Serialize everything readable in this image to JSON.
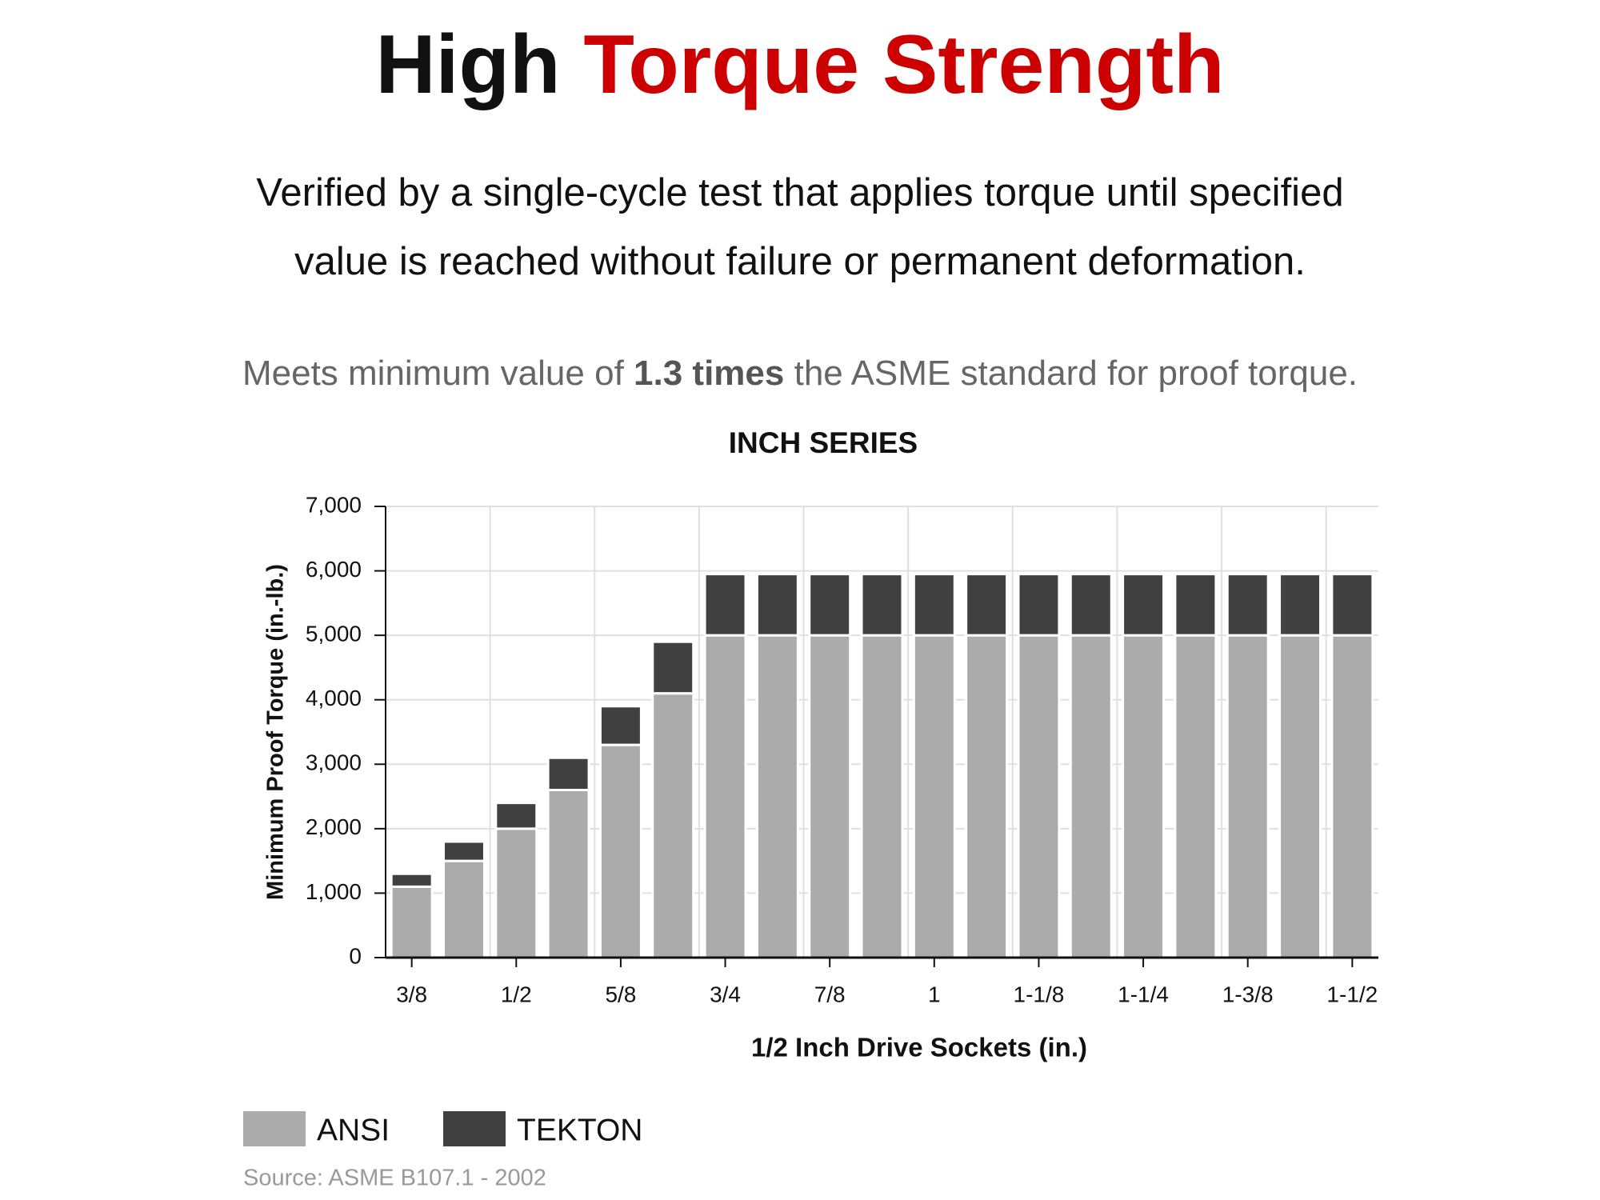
{
  "header": {
    "title_first": "High",
    "title_second": "Torque Strength",
    "description_line1": "Verified by a single-cycle test that applies torque until specified",
    "description_line2": "value is reached without failure or permanent deformation.",
    "note_start": "Meets minimum value of",
    "note_bold": "1.3 times",
    "note_end": "the ASME standard for proof torque."
  },
  "chart_data": {
    "type": "stacked-bar",
    "title": "INCH SERIES",
    "x_label": "1/2 Inch Drive Sockets (in.)",
    "y_label": "Minimum Proof Torque (in.-lb.)",
    "categories": [
      "3/8",
      null,
      "1/2",
      null,
      "5/8",
      null,
      "3/4",
      null,
      "7/8",
      null,
      "1",
      null,
      "1-1/8",
      null,
      "1-1/4",
      null,
      "1-3/8",
      null,
      "1-1/2"
    ],
    "series": [
      {
        "name": "ANSI",
        "color": "#ababab",
        "values": [
          1100,
          1500,
          2000,
          2600,
          3300,
          4100,
          5000,
          5000,
          5000,
          5000,
          5000,
          5000,
          5000,
          5000,
          5000,
          5000,
          5000,
          5000,
          5000
        ]
      },
      {
        "name": "TEKTON",
        "color": "#404040",
        "values": [
          200,
          300,
          400,
          500,
          600,
          800,
          950,
          950,
          950,
          950,
          950,
          950,
          950,
          950,
          950,
          950,
          950,
          950,
          950
        ]
      }
    ],
    "ylim": [
      0,
      7000
    ],
    "yticks": [
      0,
      {
        "value": 1000,
        "label": "1,000"
      },
      {
        "value": 2000,
        "label": "2,000"
      },
      {
        "value": 3000,
        "label": "3,000"
      },
      {
        "value": 4000,
        "label": "4,000"
      },
      {
        "value": 5000,
        "label": "5,000"
      },
      {
        "value": 6000,
        "label": "6,000"
      },
      {
        "value": 7000,
        "label": "7,000"
      }
    ],
    "grid": true,
    "source": "Source: ASME B107.1 - 2002"
  }
}
